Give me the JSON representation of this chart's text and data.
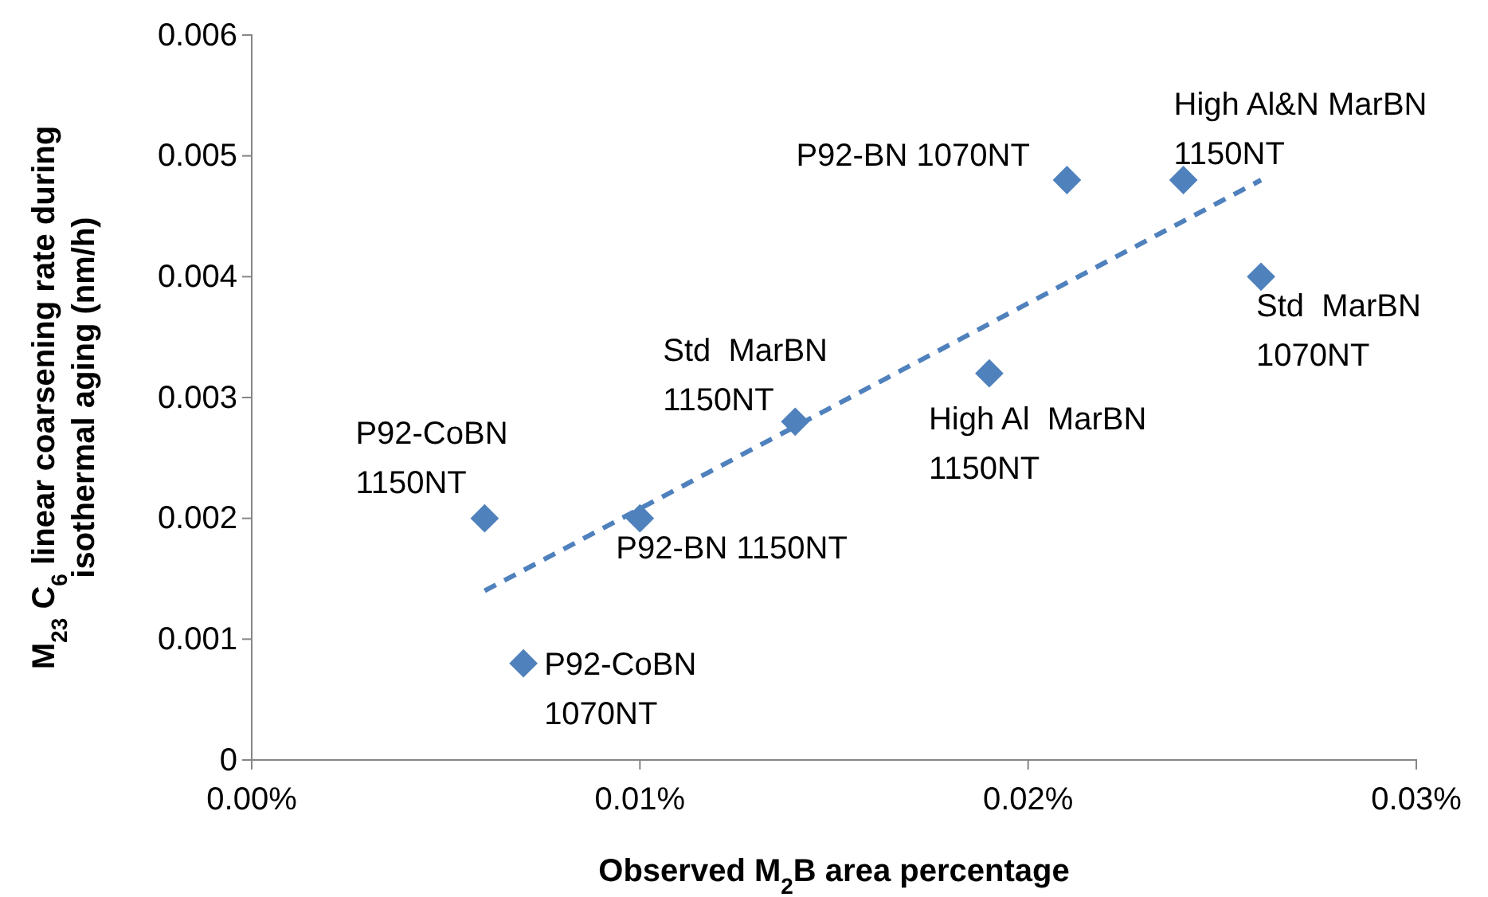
{
  "chart_data": {
    "type": "scatter",
    "xlabel": "Observed M$_{2}$B area percentage",
    "ylabel": "M$_{23}$ C$_{6}$ linear coarsening rate during\nisothermal aging (nm/h)",
    "xlim": [
      0,
      0.03
    ],
    "ylim": [
      0,
      0.006
    ],
    "xticks": [
      {
        "value": 0,
        "label": "0.00%"
      },
      {
        "value": 0.01,
        "label": "0.01%"
      },
      {
        "value": 0.02,
        "label": "0.02%"
      },
      {
        "value": 0.03,
        "label": "0.03%"
      }
    ],
    "yticks": [
      0,
      0.001,
      0.002,
      0.003,
      0.004,
      0.005,
      0.006
    ],
    "grid": false,
    "marker": "diamond",
    "series": [
      {
        "color": "#4f81bd",
        "x": [
          0.006,
          0.007,
          0.01,
          0.014,
          0.019,
          0.021,
          0.024,
          0.026
        ],
        "values": [
          0.002,
          0.0008,
          0.002,
          0.0028,
          0.0032,
          0.0048,
          0.0048,
          0.004
        ]
      },
      {
        "type": "line",
        "color": "#4f81bd",
        "line_style": "dashed",
        "marker": "none",
        "x": [
          0.006,
          0.026
        ],
        "values": [
          0.0014,
          0.0048
        ]
      }
    ],
    "annotations": [
      {
        "text": "P92-CoBN\n1150NT",
        "x": 0.006,
        "y": 0.002
      },
      {
        "text": "P92-CoBN\n1070NT",
        "x": 0.007,
        "y": 0.0008
      },
      {
        "text": "P92-BN 1150NT",
        "x": 0.01,
        "y": 0.002
      },
      {
        "text": "Std  MarBN\n1150NT",
        "x": 0.014,
        "y": 0.0028
      },
      {
        "text": "High Al  MarBN\n1150NT",
        "x": 0.019,
        "y": 0.0032
      },
      {
        "text": "P92-BN 1070NT",
        "x": 0.021,
        "y": 0.0048
      },
      {
        "text": "High Al&N MarBN\n1150NT",
        "x": 0.024,
        "y": 0.0048
      },
      {
        "text": "Std  MarBN\n1070NT",
        "x": 0.026,
        "y": 0.004
      }
    ]
  }
}
